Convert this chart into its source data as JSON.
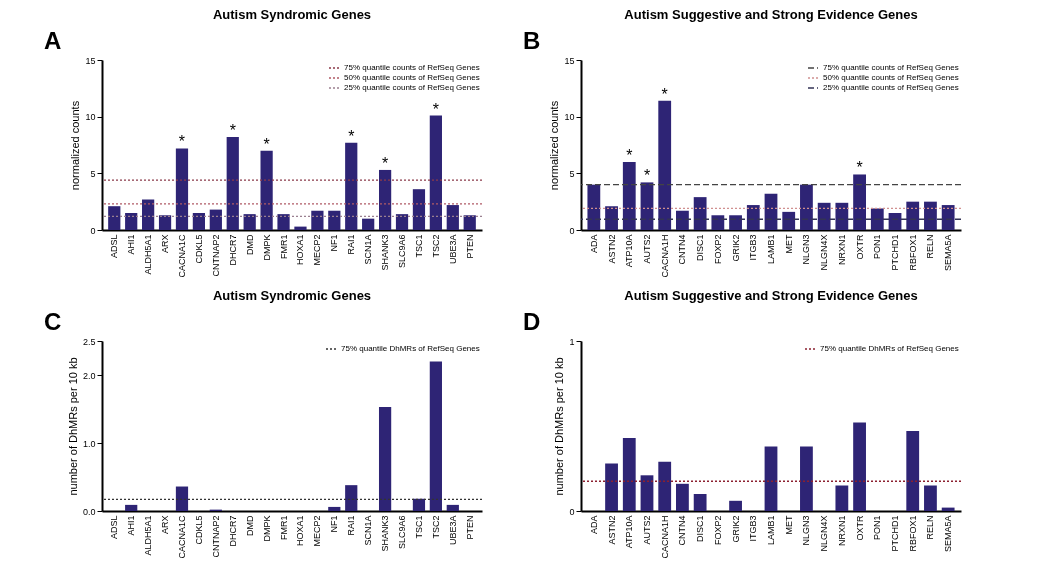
{
  "chart_data": [
    {
      "type": "bar",
      "title": "Autism Syndromic Genes",
      "ylabel": "normalized counts",
      "color": "#2e2475",
      "legend": "top right",
      "categories": [
        "ADSL",
        "AHI1",
        "ALDH5A1",
        "ARX",
        "CACNA1C",
        "CDKL5",
        "CNTNAP2",
        "DHCR7",
        "DMD",
        "DMPK",
        "FMR1",
        "HOXA1",
        "MECP2",
        "NF1",
        "RAI1",
        "SCN1A",
        "SHANK3",
        "SLC9A6",
        "TSC1",
        "TSC2",
        "UBE3A",
        "PTEN"
      ],
      "values": [
        2.1,
        1.5,
        2.7,
        1.3,
        7.2,
        1.5,
        1.8,
        8.2,
        1.4,
        7.0,
        1.4,
        0.3,
        1.7,
        1.7,
        7.7,
        1.0,
        5.3,
        1.4,
        3.6,
        10.1,
        2.2,
        1.3
      ],
      "ylim": [
        0,
        15
      ],
      "yticks": [
        0,
        5,
        10,
        15
      ],
      "ref_lines": [
        {
          "axis": "y",
          "value": 4.4,
          "label": "75% quantile counts of RefSeq Genes",
          "color": "#8b3a4a",
          "line_style": "dotted"
        },
        {
          "axis": "y",
          "value": 2.3,
          "label": "50% quantile counts of RefSeq Genes",
          "color": "#b05a66",
          "line_style": "dotted"
        },
        {
          "axis": "y",
          "value": 1.2,
          "label": "25% quantile counts of RefSeq Genes",
          "color": "#9a8090",
          "line_style": "dotted"
        }
      ],
      "annotations": [
        "A",
        {
          "text": "*",
          "x": "CACNA1C",
          "y": 7.2
        },
        {
          "text": "*",
          "x": "DHCR7",
          "y": 8.2
        },
        {
          "text": "*",
          "x": "DMPK",
          "y": 7.0
        },
        {
          "text": "*",
          "x": "RAI1",
          "y": 7.7
        },
        {
          "text": "*",
          "x": "SHANK3",
          "y": 5.3
        },
        {
          "text": "*",
          "x": "TSC2",
          "y": 10.1
        }
      ]
    },
    {
      "type": "bar",
      "title": "Autism Suggestive and Strong Evidence Genes",
      "ylabel": "normalized counts",
      "color": "#2e2475",
      "legend": "top right",
      "categories": [
        "ADA",
        "ASTN2",
        "ATP10A",
        "AUTS2",
        "CACNA1H",
        "CNTN4",
        "DISC1",
        "FOXP2",
        "GRIK2",
        "ITGB3",
        "LAMB1",
        "MET",
        "NLGN3",
        "NLGN4X",
        "NRXN1",
        "OXTR",
        "PON1",
        "PTCHD1",
        "RBFOX1",
        "RELN",
        "SEMA5A"
      ],
      "values": [
        4.0,
        2.1,
        6.0,
        4.2,
        11.4,
        1.7,
        2.9,
        1.3,
        1.3,
        2.2,
        3.2,
        1.6,
        4.0,
        2.4,
        2.4,
        4.9,
        1.9,
        1.5,
        2.5,
        2.5,
        2.2
      ],
      "ylim": [
        0,
        15
      ],
      "yticks": [
        0,
        5,
        10,
        15
      ],
      "ref_lines": [
        {
          "axis": "y",
          "value": 4.0,
          "label": "75% quantile counts of RefSeq Genes",
          "color": "#444444",
          "line_style": "dashed"
        },
        {
          "axis": "y",
          "value": 1.9,
          "label": "50% quantile counts of RefSeq Genes",
          "color": "#d09090",
          "line_style": "dotted"
        },
        {
          "axis": "y",
          "value": 0.95,
          "label": "25% quantile counts of RefSeq Genes",
          "color": "#333355",
          "line_style": "dashed"
        }
      ],
      "annotations": [
        "B",
        {
          "text": "*",
          "x": "ATP10A",
          "y": 6.0
        },
        {
          "text": "*",
          "x": "AUTS2",
          "y": 4.2
        },
        {
          "text": "*",
          "x": "CACNA1H",
          "y": 11.4
        },
        {
          "text": "*",
          "x": "OXTR",
          "y": 4.9
        }
      ]
    },
    {
      "type": "bar",
      "title": "Autism Syndromic Genes",
      "ylabel": "number of DhMRs per 10 kb",
      "color": "#2e2475",
      "legend": "top right",
      "categories": [
        "ADSL",
        "AHI1",
        "ALDH5A1",
        "ARX",
        "CACNA1C",
        "CDKL5",
        "CNTNAP2",
        "DHCR7",
        "DMD",
        "DMPK",
        "FMR1",
        "HOXA1",
        "MECP2",
        "NF1",
        "RAI1",
        "SCN1A",
        "SHANK3",
        "SLC9A6",
        "TSC1",
        "TSC2",
        "UBE3A",
        "PTEN"
      ],
      "values": [
        0,
        0.09,
        0,
        0,
        0.36,
        0,
        0.02,
        0,
        0,
        0,
        0,
        0,
        0,
        0.06,
        0.38,
        0,
        1.53,
        0,
        0.18,
        2.2,
        0.09,
        0
      ],
      "ylim": [
        0,
        2.5
      ],
      "yticks": [
        {
          "value": 0,
          "label": "0.0"
        },
        {
          "value": 1,
          "label": "1.0"
        },
        {
          "value": 2,
          "label": "2.0"
        },
        2.5
      ],
      "ref_lines": [
        {
          "axis": "y",
          "value": 0.17,
          "label": "75% quantile DhMRs of RefSeq Genes",
          "color": "#333333",
          "line_style": "dotted"
        }
      ],
      "annotations": [
        "C"
      ]
    },
    {
      "type": "bar",
      "title": "Autism Suggestive and Strong Evidence Genes",
      "ylabel": "number of DhMRs per 10 kb",
      "color": "#2e2475",
      "legend": "top right",
      "categories": [
        "ADA",
        "ASTN2",
        "ATP10A",
        "AUTS2",
        "CACNA1H",
        "CNTN4",
        "DISC1",
        "FOXP2",
        "GRIK2",
        "ITGB3",
        "LAMB1",
        "MET",
        "NLGN3",
        "NLGN4X",
        "NRXN1",
        "OXTR",
        "PON1",
        "PTCHD1",
        "RBFOX1",
        "RELN",
        "SEMA5A"
      ],
      "values": [
        0,
        0.28,
        0.43,
        0.21,
        0.29,
        0.16,
        0.1,
        0,
        0.06,
        0,
        0.38,
        0,
        0.38,
        0,
        0.15,
        0.52,
        0,
        0,
        0.47,
        0.15,
        0.02
      ],
      "ylim": [
        0,
        1
      ],
      "yticks": [
        0,
        1
      ],
      "ref_lines": [
        {
          "axis": "y",
          "value": 0.175,
          "label": "75% quantile DhMRs of RefSeq Genes",
          "color": "#8b2030",
          "line_style": "dotted"
        }
      ],
      "annotations": [
        "D"
      ]
    }
  ]
}
